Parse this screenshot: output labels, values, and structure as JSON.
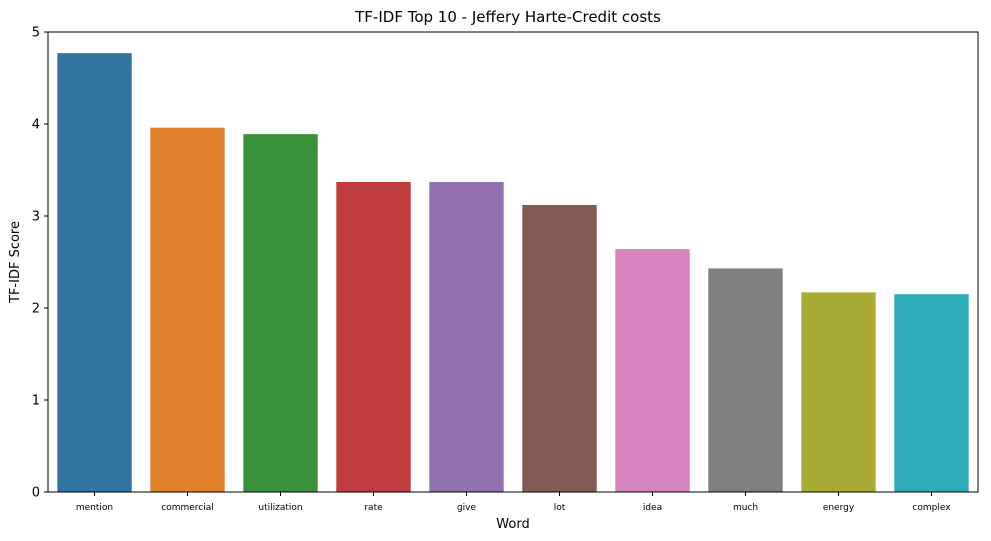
{
  "chart_data": {
    "type": "bar",
    "title": "TF-IDF Top 10 - Jeffery Harte-Credit costs",
    "xlabel": "Word",
    "ylabel": "TF-IDF Score",
    "ylim": [
      0,
      5
    ],
    "yticks": [
      0,
      1,
      2,
      3,
      4,
      5
    ],
    "grid": false,
    "categories": [
      "mention",
      "commercial",
      "utilization",
      "rate",
      "give",
      "lot",
      "idea",
      "much",
      "energy",
      "complex"
    ],
    "values": [
      4.77,
      3.96,
      3.89,
      3.37,
      3.37,
      3.12,
      2.64,
      2.43,
      2.17,
      2.15
    ],
    "colors": [
      "#3274a1",
      "#e1812c",
      "#3a923a",
      "#c03d3e",
      "#9372b2",
      "#845b53",
      "#d684bd",
      "#7f7f7f",
      "#a9aa35",
      "#2eabb8"
    ]
  }
}
